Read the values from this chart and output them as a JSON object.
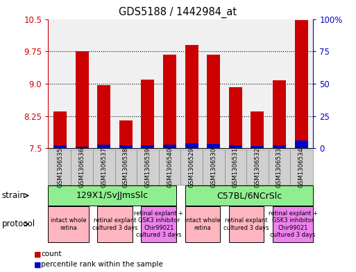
{
  "title": "GDS5188 / 1442984_at",
  "samples": [
    "GSM1306535",
    "GSM1306536",
    "GSM1306537",
    "GSM1306538",
    "GSM1306539",
    "GSM1306540",
    "GSM1306529",
    "GSM1306530",
    "GSM1306531",
    "GSM1306532",
    "GSM1306533",
    "GSM1306534"
  ],
  "red_values": [
    8.35,
    9.75,
    8.97,
    8.15,
    9.1,
    9.68,
    9.9,
    9.68,
    8.92,
    8.35,
    9.08,
    10.47
  ],
  "blue_values": [
    7.57,
    7.53,
    7.59,
    7.56,
    7.56,
    7.58,
    7.62,
    7.6,
    7.56,
    7.55,
    7.57,
    7.68
  ],
  "ymin": 7.5,
  "ymax": 10.5,
  "y_ticks_left": [
    7.5,
    8.25,
    9.0,
    9.75,
    10.5
  ],
  "y_ticks_right_vals": [
    0,
    25,
    50,
    75,
    100
  ],
  "y_ticks_right_labels": [
    "0",
    "25",
    "50",
    "75",
    "100%"
  ],
  "strain_groups": [
    {
      "label": "129X1/SvJJmsSlc",
      "start": 0,
      "end": 5,
      "color": "#90ee90"
    },
    {
      "label": "C57BL/6NCrSlc",
      "start": 6,
      "end": 11,
      "color": "#90ee90"
    }
  ],
  "protocol_groups": [
    {
      "label": "intact whole\nretina",
      "start": 0,
      "end": 1,
      "color": "#ffb6c1"
    },
    {
      "label": "retinal explant\ncultured 3 days",
      "start": 2,
      "end": 3,
      "color": "#ffb6c1"
    },
    {
      "label": "retinal explant +\nGSK3 inhibitor\nChir99021\ncultured 3 days",
      "start": 4,
      "end": 5,
      "color": "#ee82ee"
    },
    {
      "label": "intact whole\nretina",
      "start": 6,
      "end": 7,
      "color": "#ffb6c1"
    },
    {
      "label": "retinal explant\ncultured 3 days",
      "start": 8,
      "end": 9,
      "color": "#ffb6c1"
    },
    {
      "label": "retinal explant +\nGSK3 inhibitor\nChir99021\ncultured 3 days",
      "start": 10,
      "end": 11,
      "color": "#ee82ee"
    }
  ],
  "bar_width": 0.6,
  "bar_color_red": "#cc0000",
  "bar_color_blue": "#0000cc",
  "axis_color_left": "#cc0000",
  "axis_color_right": "#0000cc",
  "plot_bg": "#f0f0f0",
  "sample_box_color": "#d0d0d0",
  "legend_items": [
    {
      "color": "#cc0000",
      "label": "count"
    },
    {
      "color": "#0000cc",
      "label": "percentile rank within the sample"
    }
  ]
}
